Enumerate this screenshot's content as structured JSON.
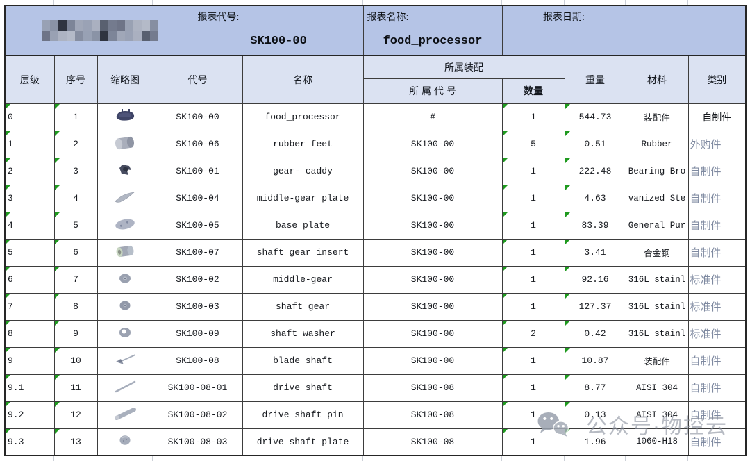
{
  "report_header": {
    "code_label": "报表代号:",
    "code_value": "SK100-00",
    "name_label": "报表名称:",
    "name_value": "food_processor",
    "date_label": "报表日期:",
    "date_value": ""
  },
  "table": {
    "columns": {
      "level": "层级",
      "seq": "序号",
      "thumb": "缩略图",
      "code": "代号",
      "name": "名称",
      "assembly_group": "所属装配",
      "parent_code": "所 属 代 号",
      "qty": "数量",
      "weight": "重量",
      "material": "材料",
      "category": "类别"
    },
    "rows": [
      {
        "level": "0",
        "seq": "1",
        "thumb_icon": "food-processor-blob",
        "code": "SK100-00",
        "name": "food_processor",
        "parent": "#",
        "qty": "1",
        "weight": "544.73",
        "material": "装配件",
        "category": "自制件"
      },
      {
        "level": "1",
        "seq": "2",
        "thumb_icon": "cylinder",
        "code": "SK100-06",
        "name": "rubber feet",
        "parent": "SK100-00",
        "qty": "5",
        "weight": "0.51",
        "material": "Rubber",
        "category": "外购件"
      },
      {
        "level": "2",
        "seq": "3",
        "thumb_icon": "gear-caddy",
        "code": "SK100-01",
        "name": "gear- caddy",
        "parent": "SK100-00",
        "qty": "1",
        "weight": "222.48",
        "material": "Bearing Bro",
        "category": "自制件"
      },
      {
        "level": "3",
        "seq": "4",
        "thumb_icon": "curved-blade",
        "code": "SK100-04",
        "name": "middle-gear plate",
        "parent": "SK100-00",
        "qty": "1",
        "weight": "4.63",
        "material": "vanized Ste",
        "category": "自制件"
      },
      {
        "level": "4",
        "seq": "5",
        "thumb_icon": "base-plate",
        "code": "SK100-05",
        "name": "base plate",
        "parent": "SK100-00",
        "qty": "1",
        "weight": "83.39",
        "material": "General Pur",
        "category": "自制件"
      },
      {
        "level": "5",
        "seq": "6",
        "thumb_icon": "insert-cylinder",
        "code": "SK100-07",
        "name": "shaft gear insert",
        "parent": "SK100-00",
        "qty": "1",
        "weight": "3.41",
        "material": "合金钢",
        "category": "自制件"
      },
      {
        "level": "6",
        "seq": "7",
        "thumb_icon": "small-gear",
        "code": "SK100-02",
        "name": "middle-gear",
        "parent": "SK100-00",
        "qty": "1",
        "weight": "92.16",
        "material": "316L stainl",
        "category": "标准件"
      },
      {
        "level": "7",
        "seq": "8",
        "thumb_icon": "gear-disc",
        "code": "SK100-03",
        "name": "shaft gear",
        "parent": "SK100-00",
        "qty": "1",
        "weight": "127.37",
        "material": "316L stainl",
        "category": "标准件"
      },
      {
        "level": "8",
        "seq": "9",
        "thumb_icon": "washer",
        "code": "SK100-09",
        "name": "shaft washer",
        "parent": "SK100-00",
        "qty": "2",
        "weight": "0.42",
        "material": "316L stainl",
        "category": "标准件"
      },
      {
        "level": "9",
        "seq": "10",
        "thumb_icon": "blade-shaft",
        "code": "SK100-08",
        "name": "blade shaft",
        "parent": "SK100-00",
        "qty": "1",
        "weight": "10.87",
        "material": "装配件",
        "category": "自制件"
      },
      {
        "level": "9.1",
        "seq": "11",
        "thumb_icon": "thin-rod",
        "code": "SK100-08-01",
        "name": "drive shaft",
        "parent": "SK100-08",
        "qty": "1",
        "weight": "8.77",
        "material": "AISI 304",
        "category": "自制件"
      },
      {
        "level": "9.2",
        "seq": "12",
        "thumb_icon": "thick-rod",
        "code": "SK100-08-02",
        "name": "drive shaft pin",
        "parent": "SK100-08",
        "qty": "1",
        "weight": "0.13",
        "material": "AISI 304",
        "category": "自制件"
      },
      {
        "level": "9.3",
        "seq": "13",
        "thumb_icon": "small-disc",
        "code": "SK100-08-03",
        "name": "drive shaft plate",
        "parent": "SK100-08",
        "qty": "1",
        "weight": "1.96",
        "material": "1060-H18",
        "category": "自制件"
      }
    ]
  },
  "watermark": {
    "text": "公众号·物控云"
  },
  "colors": {
    "top_fill": "#b5c4e6",
    "header_fill": "#dbe2f2",
    "border": "#3d3d3d",
    "border_heavy": "#262626",
    "marker_green": "#1f9a1f",
    "category_gray": "#7e89a0"
  }
}
